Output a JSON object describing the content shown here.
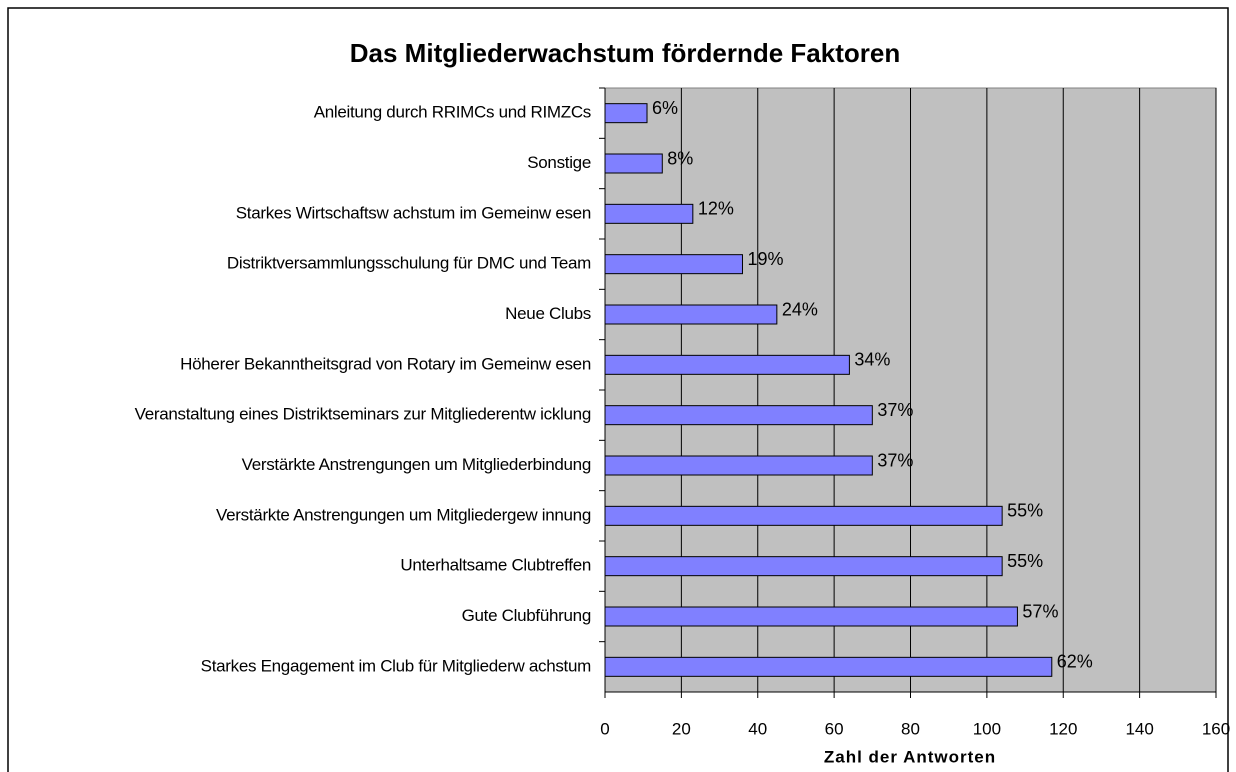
{
  "chart_data": {
    "type": "bar",
    "orientation": "horizontal",
    "title": "Das Mitgliederwachstum fördernde Faktoren",
    "x_label": "Zahl der Antworten",
    "categories": [
      "Anleitung durch RRIMCs und RIMZCs",
      "Sonstige",
      "Starkes Wirtschaftsw achstum im Gemeinw esen",
      "Distriktversammlungsschulung für DMC und Team",
      "Neue Clubs",
      "Höherer Bekanntheitsgrad von Rotary im Gemeinw esen",
      "Veranstaltung eines Distriktseminars zur Mitgliederentw icklung",
      "Verstärkte Anstrengungen um Mitgliederbindung",
      "Verstärkte Anstrengungen um Mitgliedergew innung",
      "Unterhaltsame Clubtreffen",
      "Gute Clubführung",
      "Starkes Engagement im Club für Mitgliederw achstum"
    ],
    "values": [
      11,
      15,
      23,
      36,
      45,
      64,
      70,
      70,
      104,
      104,
      108,
      117
    ],
    "value_labels": [
      "6%",
      "8%",
      "12%",
      "19%",
      "24%",
      "34%",
      "37%",
      "37%",
      "55%",
      "55%",
      "57%",
      "62%"
    ],
    "color": "#8080ff",
    "xlim": [
      0,
      160
    ],
    "xticks": [
      0,
      20,
      40,
      60,
      80,
      100,
      120,
      140,
      160
    ],
    "grid": true
  }
}
